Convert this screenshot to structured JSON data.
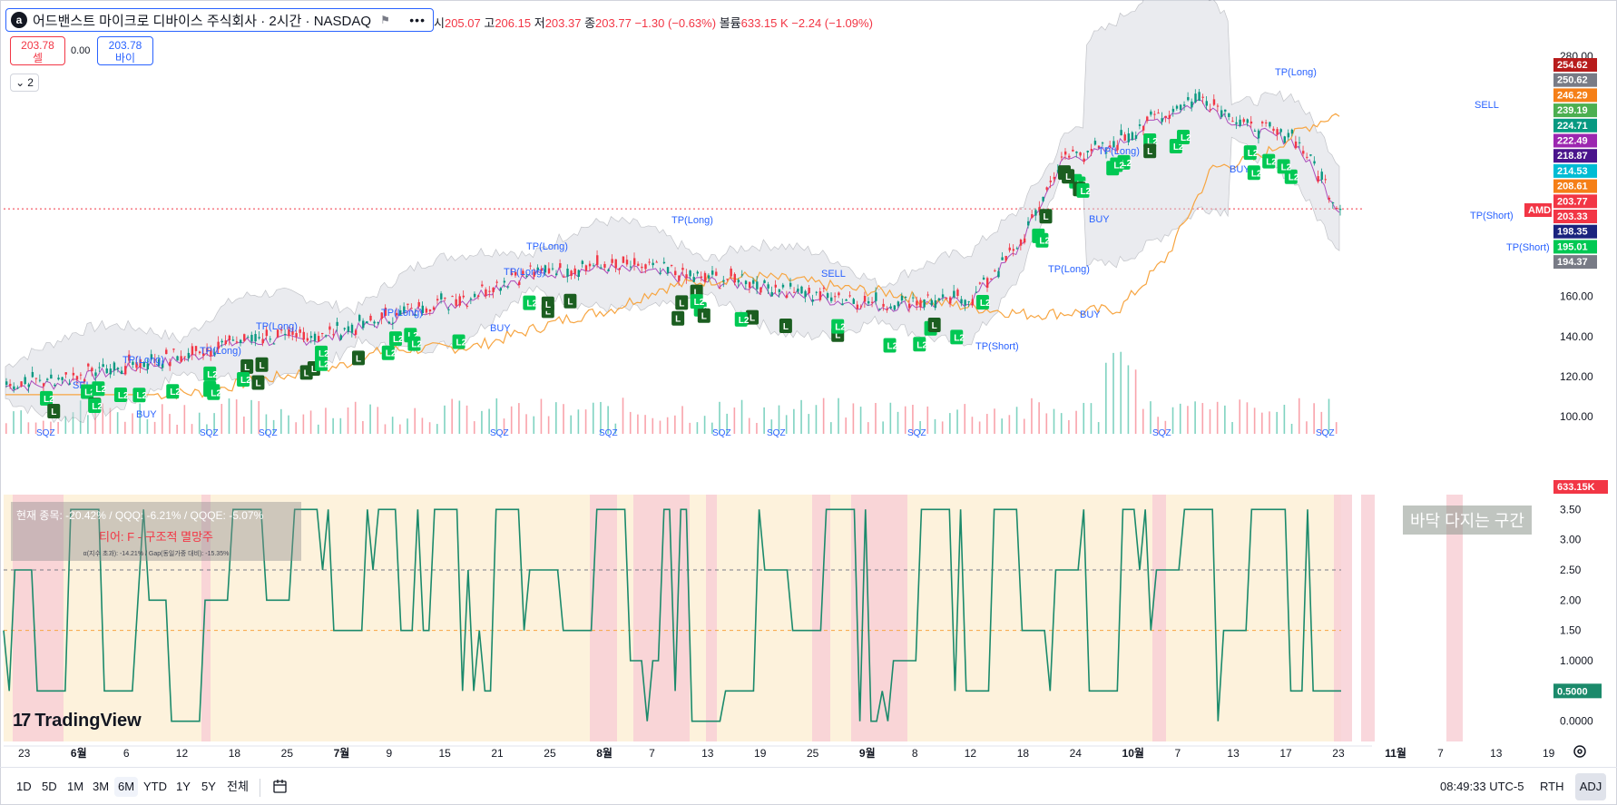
{
  "header": {
    "symbol_logo": "a",
    "symbol": "어드밴스트 마이크로 디바이스 주식회사 · 2시간 · NASDAQ",
    "flag_icon": "flag-icon",
    "more_label": "•••",
    "ohlc": {
      "open_label": "시",
      "open": "205.07",
      "high_label": "고",
      "high": "206.15",
      "low_label": "저",
      "low": "203.37",
      "close_label": "종",
      "close": "203.77",
      "change": "−1.30 (−0.63%)",
      "volume_label": "볼륨",
      "volume": "633.15 K",
      "volume_change": "−2.24 (−1.09%)"
    }
  },
  "trade": {
    "sell_price": "203.78",
    "sell_label": "셀",
    "spread": "0.00",
    "buy_price": "203.78",
    "buy_label": "바이"
  },
  "indicators_toggle": {
    "count": "2",
    "icon": "chevron-down-icon"
  },
  "price_axis": [
    "280.00",
    "160.00",
    "140.00",
    "120.00",
    "100.00"
  ],
  "price_labels": [
    {
      "text": "254.62",
      "color": "#b71c1c"
    },
    {
      "text": "250.62",
      "color": "#787b86"
    },
    {
      "text": "246.29",
      "color": "#f57f17"
    },
    {
      "text": "239.19",
      "color": "#4caf50"
    },
    {
      "text": "224.71",
      "color": "#089981"
    },
    {
      "text": "222.49",
      "color": "#9c27b0"
    },
    {
      "text": "218.87",
      "color": "#4a148c"
    },
    {
      "text": "214.53",
      "color": "#00bcd4"
    },
    {
      "text": "208.61",
      "color": "#f57f17"
    },
    {
      "text": "203.77",
      "color": "#f23645"
    },
    {
      "text": "203.33",
      "color": "#f23645"
    },
    {
      "text": "198.35",
      "color": "#1a237e"
    },
    {
      "text": "195.01",
      "color": "#00c853"
    },
    {
      "text": "194.37",
      "color": "#787b86"
    }
  ],
  "ticker_tag": "AMD",
  "volume_label": "633.15K",
  "osc_axis": [
    "3.50",
    "3.00",
    "2.50",
    "2.00",
    "1.50",
    "1.0000",
    "0.5000",
    "0.0000"
  ],
  "osc_current": "0.5000",
  "time_axis": [
    "23",
    "6월",
    "6",
    "12",
    "18",
    "25",
    "7월",
    "9",
    "15",
    "21",
    "25",
    "8월",
    "7",
    "13",
    "19",
    "25",
    "9월",
    "8",
    "12",
    "18",
    "24",
    "10월",
    "7",
    "13",
    "17",
    "23",
    "11월",
    "7",
    "13",
    "19"
  ],
  "signals": {
    "sell": "SELL",
    "buy": "BUY",
    "tp_long": "TP(Long)",
    "tp_short": "TP(Short)",
    "squeeze": "SQZ",
    "l2": "L2",
    "l": "L"
  },
  "info_panel": {
    "line1": "현재 종목: -20.42% / QQQ: -6.21% / QQQE: -5.07%",
    "line2": "티어: F - 구조적 멸망주",
    "line3": "α(지수 초과): -14.21% / Gap(동일가중 대비): -15.35%"
  },
  "zone_label": "바닥 다지는 구간",
  "watermark": "TradingView",
  "ranges": [
    "1D",
    "5D",
    "1M",
    "3M",
    "6M",
    "YTD",
    "1Y",
    "5Y",
    "전체"
  ],
  "active_range": "6M",
  "clock": "08:49:33 UTC-5",
  "session": "RTH",
  "adjust": "ADJ",
  "colors": {
    "up": "#089981",
    "down": "#f23645",
    "accent": "#2962ff",
    "osc_line": "#1b8a6b",
    "orange_ma": "#f7a541",
    "l_badge": "#00c853",
    "l_badge_dark": "#1b5e20"
  },
  "chart_data": {
    "type": "line",
    "title": "",
    "x": [
      "23",
      "6월",
      "6",
      "12",
      "18",
      "25",
      "7월",
      "9",
      "15",
      "21",
      "25",
      "8월",
      "7",
      "13",
      "19",
      "25",
      "9월",
      "8",
      "12",
      "18",
      "24",
      "10월",
      "7",
      "13",
      "17",
      "23",
      "11월",
      "7",
      "13",
      "19"
    ],
    "series": [
      {
        "values": [
          117,
          118,
          123,
          127,
          131,
          139,
          140,
          141,
          148,
          155,
          160,
          170,
          174,
          176,
          174,
          170,
          168,
          163,
          160,
          157,
          158,
          160,
          185,
          230,
          235,
          250,
          260,
          245,
          240,
          205
        ]
      }
    ],
    "ylim": [
      95,
      290
    ],
    "oscillator": {
      "ylim": [
        -0.2,
        3.7
      ],
      "values": [
        2.5,
        0.5,
        3.5,
        0.5,
        2.0,
        0.0,
        2.0,
        3.5,
        2.0,
        3.5,
        1.5,
        3.5,
        1.5,
        3.5,
        0.5,
        3.5,
        2.5,
        1.5,
        3.5,
        1.0,
        3.5,
        0.0,
        0.5,
        2.5,
        1.5,
        3.5,
        0.0,
        1.0,
        3.5,
        0.5,
        3.5,
        1.5,
        2.5,
        0.5,
        3.5,
        2.5,
        3.5,
        1.5,
        3.5,
        0.5,
        0.5
      ]
    }
  }
}
